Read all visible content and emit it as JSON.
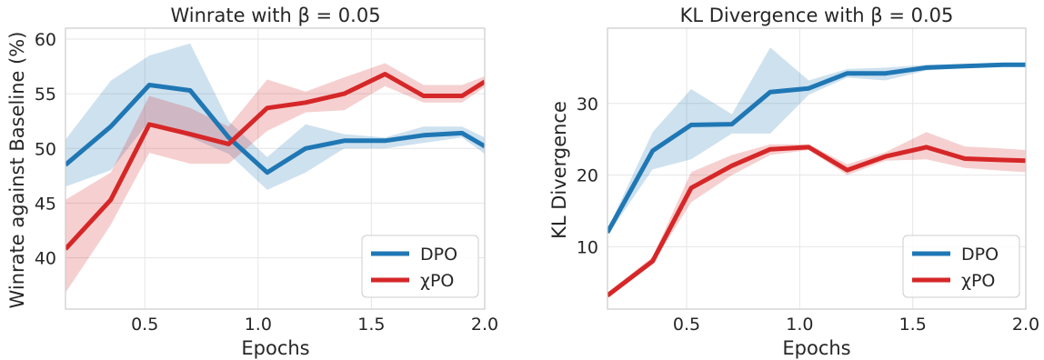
{
  "chart_data": [
    {
      "type": "line",
      "title": "Winrate with β = 0.05",
      "xlabel": "Epochs",
      "ylabel": "Winrate against Baseline (%)",
      "xlim": [
        0.15,
        2.0
      ],
      "ylim": [
        35.3,
        61.0
      ],
      "xticks": [
        0.5,
        1.0,
        1.5,
        2.0
      ],
      "xtick_labels": [
        "0.5",
        "1.0",
        "1.5",
        "2.0"
      ],
      "yticks": [
        40,
        45,
        50,
        55,
        60
      ],
      "ytick_labels": [
        "40",
        "45",
        "50",
        "55",
        "60"
      ],
      "grid": true,
      "legend_position": "lower-right",
      "x": [
        0.15,
        0.35,
        0.52,
        0.7,
        0.87,
        1.04,
        1.21,
        1.38,
        1.56,
        1.73,
        1.9,
        2.0
      ],
      "series": [
        {
          "name": "DPO",
          "color": "#1f77b4",
          "values": [
            48.5,
            52.0,
            55.8,
            55.3,
            51.0,
            47.8,
            50.0,
            50.7,
            50.7,
            51.2,
            51.4,
            50.2
          ],
          "lower": [
            46.5,
            48.0,
            52.5,
            51.0,
            49.5,
            46.2,
            47.8,
            50.0,
            50.0,
            50.5,
            51.0,
            49.5
          ],
          "upper": [
            50.8,
            56.2,
            58.5,
            59.6,
            52.5,
            49.2,
            52.2,
            51.3,
            51.0,
            52.0,
            52.0,
            51.0
          ]
        },
        {
          "name": "χPO",
          "color": "#d62728",
          "values": [
            40.8,
            45.3,
            52.2,
            51.3,
            50.4,
            53.7,
            54.2,
            55.0,
            56.8,
            54.8,
            54.8,
            56.1
          ],
          "lower": [
            36.8,
            43.0,
            49.6,
            48.6,
            48.6,
            51.6,
            53.3,
            53.5,
            55.7,
            54.2,
            54.2,
            55.6
          ],
          "upper": [
            45.3,
            47.8,
            54.8,
            53.7,
            52.0,
            56.3,
            55.2,
            56.5,
            57.8,
            55.8,
            55.8,
            56.6
          ]
        }
      ]
    },
    {
      "type": "line",
      "title": "KL Divergence with β = 0.05",
      "xlabel": "Epochs",
      "ylabel": "KL Divergence",
      "xlim": [
        0.15,
        2.0
      ],
      "ylim": [
        1.3,
        40.5
      ],
      "xticks": [
        0.5,
        1.0,
        1.5,
        2.0
      ],
      "xtick_labels": [
        "0.5",
        "1.0",
        "1.5",
        "2.0"
      ],
      "yticks": [
        10,
        20,
        30
      ],
      "ytick_labels": [
        "10",
        "20",
        "30"
      ],
      "grid": true,
      "legend_position": "lower-right",
      "x": [
        0.15,
        0.35,
        0.52,
        0.7,
        0.87,
        1.04,
        1.21,
        1.38,
        1.56,
        1.73,
        1.9,
        2.0
      ],
      "series": [
        {
          "name": "DPO",
          "color": "#1f77b4",
          "values": [
            12.0,
            23.4,
            27.0,
            27.1,
            31.6,
            32.1,
            34.2,
            34.2,
            35.0,
            35.2,
            35.4,
            35.4
          ],
          "lower": [
            11.6,
            20.8,
            22.2,
            25.8,
            25.8,
            31.2,
            33.6,
            33.2,
            34.6,
            35.0,
            35.2,
            35.2
          ],
          "upper": [
            12.4,
            26.0,
            32.0,
            28.5,
            37.8,
            33.2,
            34.8,
            35.0,
            35.4,
            35.5,
            35.6,
            35.6
          ]
        },
        {
          "name": "χPO",
          "color": "#d62728",
          "values": [
            3.2,
            8.0,
            18.2,
            21.3,
            23.6,
            23.9,
            20.7,
            22.6,
            23.9,
            22.3,
            22.1,
            22.0
          ],
          "lower": [
            2.8,
            7.6,
            16.2,
            20.0,
            22.8,
            23.5,
            20.0,
            22.0,
            22.2,
            21.0,
            20.6,
            20.4
          ],
          "upper": [
            3.6,
            8.6,
            20.4,
            22.8,
            24.3,
            24.3,
            21.5,
            23.2,
            26.0,
            24.0,
            23.7,
            23.5
          ]
        }
      ]
    }
  ]
}
